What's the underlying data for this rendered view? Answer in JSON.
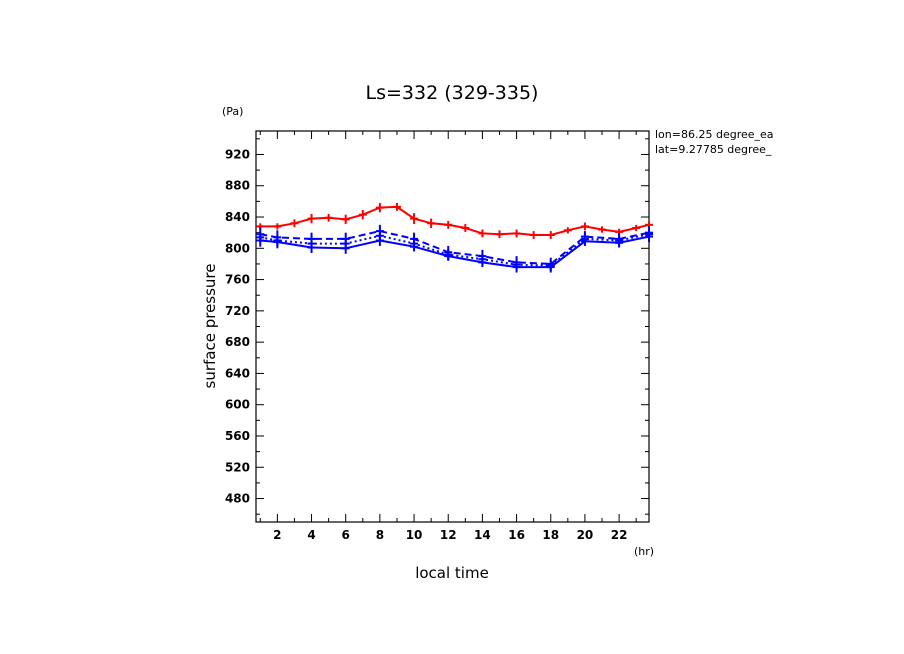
{
  "chart_data": {
    "type": "line",
    "title": "Ls=332 (329-335)",
    "xlabel": "local time",
    "ylabel": "surface pressure",
    "x_unit": "(hr)",
    "y_unit": "(Pa)",
    "annotations": [
      "lon=86.25 degree_ea",
      "lat=9.27785 degree_"
    ],
    "xlim": [
      0.75,
      23.75
    ],
    "ylim": [
      450,
      950
    ],
    "x_ticks": [
      2,
      4,
      6,
      8,
      10,
      12,
      14,
      16,
      18,
      20,
      22
    ],
    "y_ticks": [
      480,
      520,
      560,
      600,
      640,
      680,
      720,
      760,
      800,
      840,
      880,
      920
    ],
    "grid": false,
    "series": [
      {
        "color": "#ff0000",
        "style": "solid",
        "x": [
          1,
          2,
          3,
          4,
          5,
          6,
          7,
          8,
          9,
          10,
          11,
          12,
          13,
          14,
          15,
          16,
          17,
          18,
          19,
          20,
          21,
          22,
          23,
          23.75
        ],
        "y": [
          828,
          828,
          832,
          838,
          839,
          837,
          843,
          852,
          853,
          838,
          832,
          830,
          826,
          819,
          818,
          819,
          817,
          817,
          823,
          828,
          824,
          821,
          826,
          830
        ],
        "err": [
          4,
          4,
          5,
          6,
          5,
          6,
          6,
          6,
          5,
          7,
          6,
          5,
          5,
          5,
          5,
          5,
          5,
          5,
          4,
          5,
          4,
          4,
          4,
          4
        ]
      },
      {
        "color": "#0000ff",
        "style": "solid",
        "x": [
          1,
          2,
          4,
          6,
          8,
          10,
          12,
          14,
          16,
          18,
          20,
          22,
          23.75
        ],
        "y": [
          810,
          808,
          801,
          800,
          810,
          802,
          790,
          782,
          776,
          776,
          809,
          807,
          815
        ],
        "err": [
          8,
          8,
          7,
          7,
          7,
          6,
          6,
          6,
          7,
          7,
          6,
          6,
          7
        ]
      },
      {
        "color": "#0000ff",
        "style": "dashed",
        "x": [
          1,
          2,
          4,
          6,
          8,
          10,
          12,
          14,
          16,
          18,
          20,
          22,
          23.75
        ],
        "y": [
          818,
          814,
          812,
          812,
          822,
          812,
          795,
          790,
          782,
          780,
          815,
          812,
          820
        ],
        "err": [
          9,
          9,
          8,
          8,
          8,
          8,
          8,
          8,
          8,
          8,
          7,
          7,
          8
        ]
      },
      {
        "color": "#0000ff",
        "style": "dotted",
        "x": [
          1,
          2,
          4,
          6,
          8,
          10,
          12,
          14,
          16,
          18,
          20,
          22,
          23.75
        ],
        "y": [
          814,
          810,
          806,
          806,
          816,
          806,
          792,
          786,
          779,
          778,
          812,
          810,
          818
        ],
        "err": [
          7,
          7,
          7,
          7,
          7,
          7,
          7,
          7,
          7,
          7,
          7,
          7,
          7
        ]
      }
    ]
  }
}
